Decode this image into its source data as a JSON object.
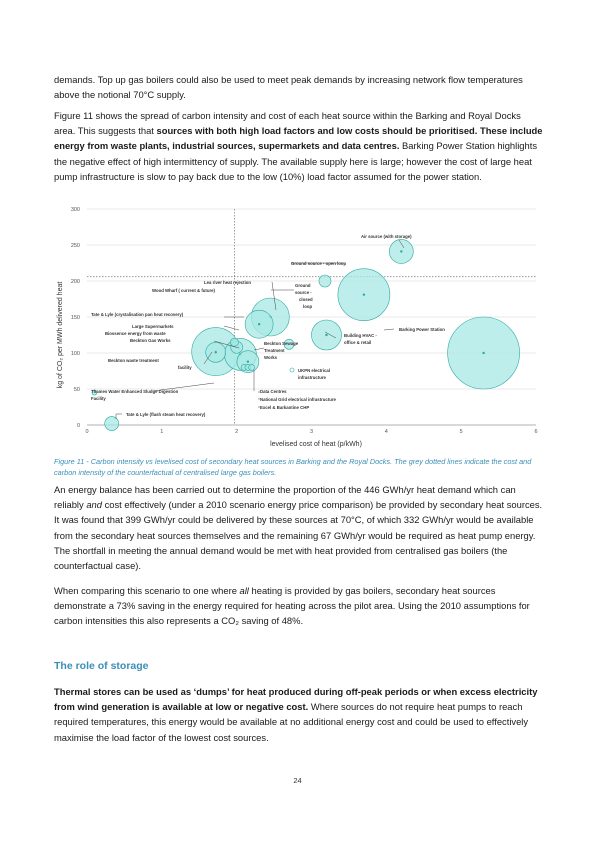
{
  "paragraph1": "demands. Top up gas boilers could also be used to meet peak demands by increasing network flow temperatures above the notional 70°C supply.",
  "paragraph2": {
    "part1": "Figure 11 shows the spread of carbon intensity and cost of each heat source within the Barking and Royal Docks area. This suggests that ",
    "bold": "sources with both high load factors and low costs should be prioritised. These include energy from waste plants, industrial sources, supermarkets and data centres.",
    "part2": " Barking Power Station highlights the negative effect of high intermittency of supply. The available supply here is large; however the cost of large heat pump infrastructure is slow to pay back due to the low (10%) load factor assumed for the power station."
  },
  "caption": "Figure 11 - Carbon intensity vs levelised cost of secondary heat sources in Barking and the Royal Docks. The grey dotted lines indicate the cost and carbon intensity of the counterfactual of centralised large gas boilers.",
  "paragraph3": {
    "part1": "An energy balance has been carried out to determine the proportion of the 446 GWh/yr heat demand which can reliably ",
    "italic": "and",
    "part2": " cost effectively (under a 2010 scenario energy price comparison) be provided by secondary heat sources. It was found that 399 GWh/yr could be delivered by these sources at 70°C, of which 332 GWh/yr would be available from the secondary heat sources themselves and the remaining 67 GWh/yr would be required as heat pump energy.  The shortfall in meeting the annual demand would be met with heat provided from centralised gas boilers (the counterfactual case)."
  },
  "paragraph4": {
    "part1": "When comparing this scenario to one where ",
    "italic": "all",
    "part2": " heating is provided by gas boilers, secondary heat sources demonstrate a 73% saving in the energy required for heating across the pilot area. Using the 2010 assumptions for carbon intensities this also represents a CO₂ saving of 48%."
  },
  "heading": "The role of storage",
  "paragraph5": {
    "bold": "Thermal stores can be used as ‘dumps’ for heat produced during off-peak periods or when excess electricity from wind generation is available at low or negative cost.",
    "part2": " Where sources do not require heat pumps to reach required temperatures, this energy would be available at no additional energy cost and could be used to effectively maximise the load factor of the lowest cost sources."
  },
  "page_number": "24",
  "chart_data": {
    "type": "scatter",
    "xlabel": "levelised cost of heat (p/kWh)",
    "ylabel": "kg of CO₂ per MWh delivered heat",
    "xlim": [
      0,
      6
    ],
    "ylim": [
      0,
      300
    ],
    "x_ticks": [
      "0",
      "1",
      "2",
      "3",
      "4",
      "5",
      "6"
    ],
    "y_ticks": [
      "0",
      "50",
      "100",
      "150",
      "200",
      "250",
      "300"
    ],
    "grid": true,
    "counterfactual": {
      "x": 1.97,
      "y": 206
    },
    "bubble_color": "#a8e8e4",
    "bubble_edge": "#2aa9a0",
    "points": [
      {
        "label": "Air source (with storage)",
        "x": 4.2,
        "y": 241,
        "r": 0.6
      },
      {
        "label": "Ground source - open loop",
        "x": 3.7,
        "y": 181,
        "r": 1.3
      },
      {
        "label": "Ground source - closed loop",
        "x": 3.18,
        "y": 200,
        "r": 0.3
      },
      {
        "label": "Lea river heat rejection",
        "x": 2.45,
        "y": 150,
        "r": 0.95
      },
      {
        "label": "Wood Wharf (current & future)",
        "x": 2.3,
        "y": 140,
        "r": 0.7
      },
      {
        "label": "Tate & Lyle (crystalisation pan heat recovery)",
        "x": 1.97,
        "y": 115,
        "r": 0.2
      },
      {
        "label": "Large Supermarkets",
        "x": 2.0,
        "y": 108,
        "r": 0.3
      },
      {
        "label": "Biossence energy from waste",
        "x": 1.72,
        "y": 102,
        "r": 1.2
      },
      {
        "label": "Beckton Gas Works",
        "x": 1.72,
        "y": 101,
        "r": 0.5
      },
      {
        "label": "Beckton waste treatment facility",
        "x": 2.05,
        "y": 98,
        "r": 0.8
      },
      {
        "label": "Beckton Sewage Treatment Works",
        "x": 2.15,
        "y": 88,
        "r": 0.55
      },
      {
        "label": "Building HVAC - office & retail",
        "x": 3.2,
        "y": 125,
        "r": 0.75
      },
      {
        "label": "Barking Power Station",
        "x": 5.3,
        "y": 100,
        "r": 1.8
      },
      {
        "label": "UKPN electrical infrastructure",
        "x": 2.7,
        "y": 112,
        "r": 0.25
      },
      {
        "label": "Data Centres",
        "x": 2.1,
        "y": 80,
        "r": 0.15
      },
      {
        "label": "National Grid electrical infrastructure",
        "x": 2.15,
        "y": 80,
        "r": 0.15
      },
      {
        "label": "Excel & Barkantine CHP",
        "x": 2.2,
        "y": 80,
        "r": 0.15
      },
      {
        "label": "Thames Water Enhanced Sludge Digestion Facility",
        "x": 0.1,
        "y": 45,
        "r": 0.12
      },
      {
        "label": "Tate & Lyle (flash steam heat recovery)",
        "x": 0.33,
        "y": 2,
        "r": 0.35
      }
    ],
    "annotations": [
      {
        "text": "Air source (with storage)"
      },
      {
        "text": "Ground source - open loop"
      },
      {
        "text": "Lea river heat rejection"
      },
      {
        "text": "Wood Wharf ( current & future)"
      },
      {
        "text": "Ground"
      },
      {
        "text": "source -"
      },
      {
        "text": "closed"
      },
      {
        "text": "loop"
      },
      {
        "text": "Tate & Lyle (crystalisation pan heat recovery)"
      },
      {
        "text": "Large Supermarkets"
      },
      {
        "text": "Biossence energy from waste"
      },
      {
        "text": "Beckton Gas Works"
      },
      {
        "text": "Beckton waste treatment"
      },
      {
        "text": "facility"
      },
      {
        "text": "Beckton Sewage"
      },
      {
        "text": "Treatment"
      },
      {
        "text": "Works"
      },
      {
        "text": "Building HVAC -"
      },
      {
        "text": "office & retail"
      },
      {
        "text": "Barking Power Station"
      },
      {
        "text": "UKPN electrical"
      },
      {
        "text": "infrastructure"
      },
      {
        "text": "Thames Water Enhanced Sludge Digestion"
      },
      {
        "text": "Facility"
      },
      {
        "text": "Data Centres"
      },
      {
        "text": "National Grid electrical infrastructure"
      },
      {
        "text": "Excel & Barkantine CHP"
      },
      {
        "text": "Tate & Lyle (flash steam heat recovery)"
      }
    ]
  }
}
